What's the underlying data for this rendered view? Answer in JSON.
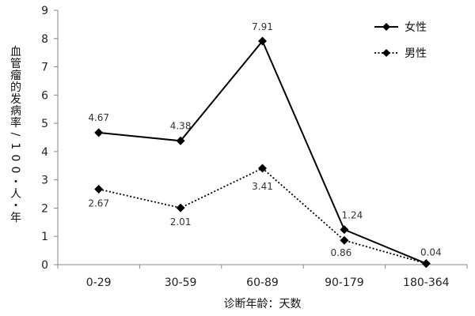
{
  "chart_data": {
    "type": "line",
    "categories": [
      "0-29",
      "30-59",
      "60-89",
      "90-179",
      "180-364"
    ],
    "xlabel": "诊断年龄：天数",
    "ylabel": "血管瘤的发病率/100・人・年",
    "ylim": [
      0,
      9
    ],
    "yticks": [
      0,
      1,
      2,
      3,
      4,
      5,
      6,
      7,
      8,
      9
    ],
    "grid": false,
    "legend_position": "top-right",
    "series": [
      {
        "name": "女性",
        "values": [
          4.67,
          4.38,
          7.91,
          1.24,
          0.04
        ],
        "labels": [
          "4.67",
          "4.38",
          "7.91",
          "1.24",
          "0.04"
        ],
        "line_style": "solid",
        "color": "#000000",
        "marker": "diamond"
      },
      {
        "name": "男性",
        "values": [
          2.67,
          2.01,
          3.41,
          0.86,
          0.04
        ],
        "labels": [
          "2.67",
          "2.01",
          "3.41",
          "0.86",
          ""
        ],
        "line_style": "dotted",
        "color": "#000000",
        "marker": "diamond"
      }
    ]
  }
}
